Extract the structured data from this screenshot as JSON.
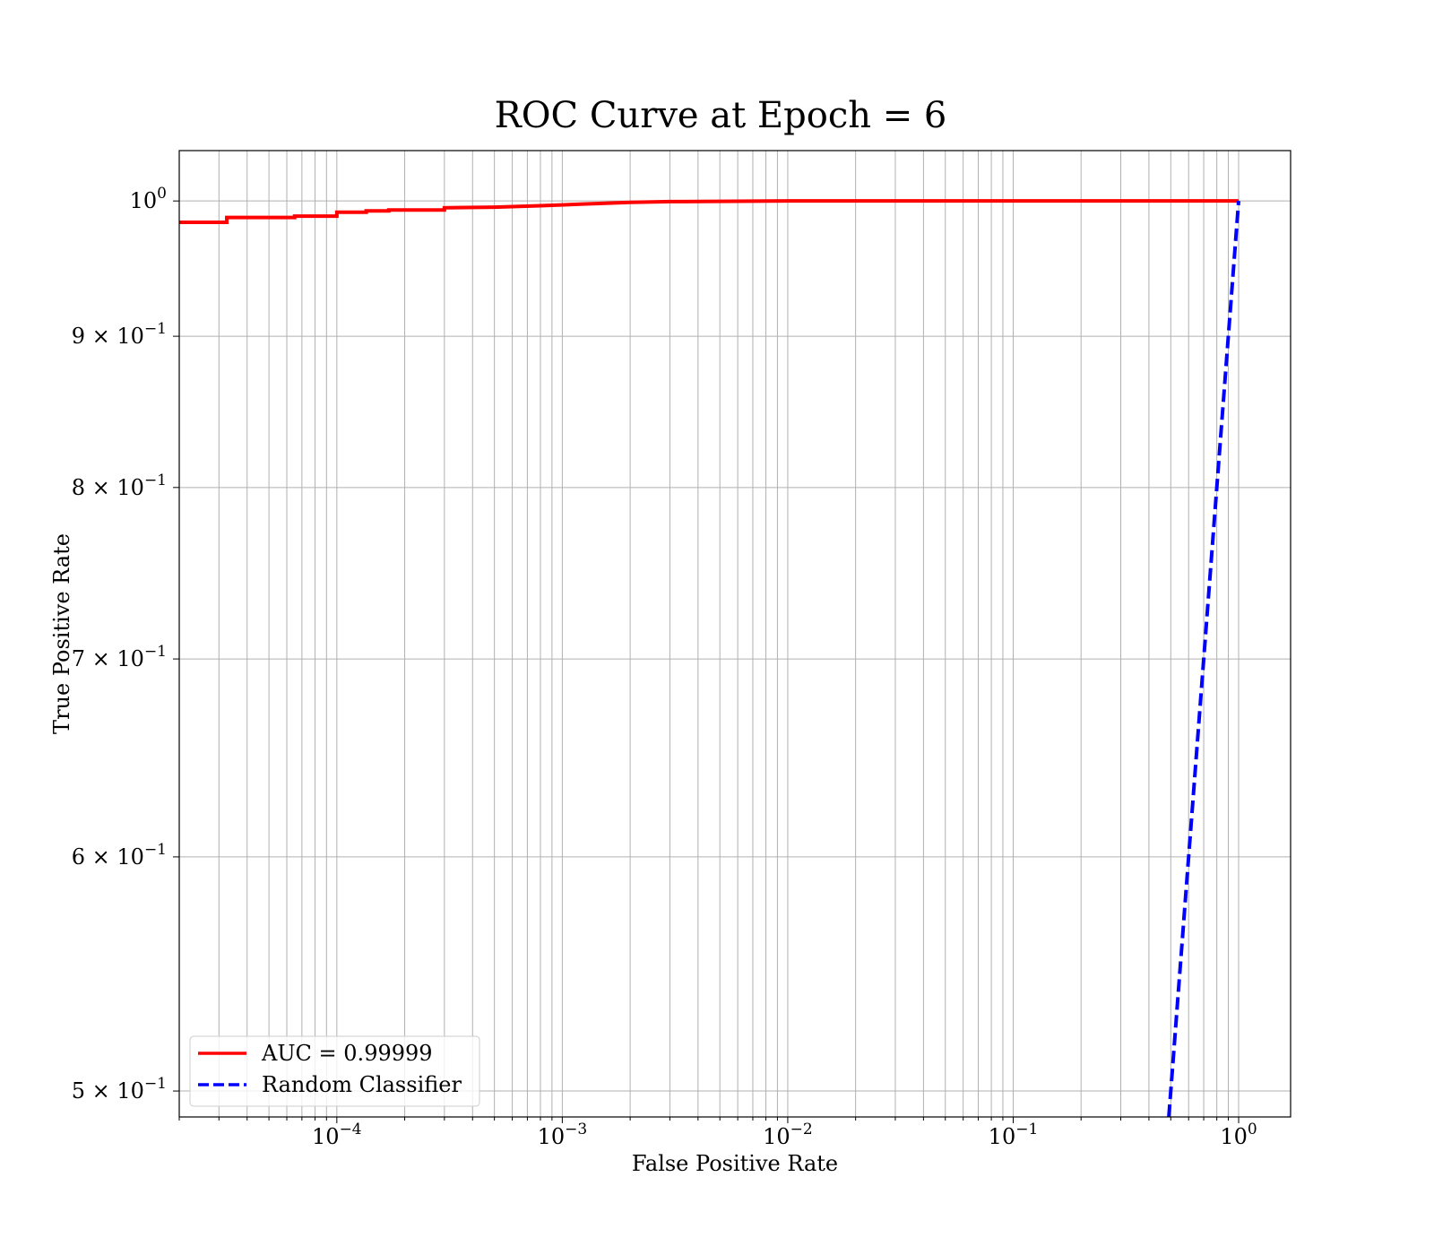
{
  "chart_data": {
    "type": "line",
    "title": "ROC Curve at Epoch = 6",
    "xlabel": "False Positive Rate",
    "ylabel": "True Positive Rate",
    "xscale": "log",
    "yscale": "log",
    "xlim": [
      2e-05,
      1.7
    ],
    "ylim": [
      0.49,
      1.04
    ],
    "grid": true,
    "grid_which": "both",
    "legend_position": "lower-left",
    "x_ticks": [
      {
        "value": 0.0001,
        "base": "10",
        "exp": "−4"
      },
      {
        "value": 0.001,
        "base": "10",
        "exp": "−3"
      },
      {
        "value": 0.01,
        "base": "10",
        "exp": "−2"
      },
      {
        "value": 0.1,
        "base": "10",
        "exp": "−1"
      },
      {
        "value": 1,
        "base": "10",
        "exp": "0"
      }
    ],
    "y_ticks": [
      {
        "value": 0.5,
        "mant": "5 × ",
        "base": "10",
        "exp": "−1"
      },
      {
        "value": 0.6,
        "mant": "6 × ",
        "base": "10",
        "exp": "−1"
      },
      {
        "value": 0.7,
        "mant": "7 × ",
        "base": "10",
        "exp": "−1"
      },
      {
        "value": 0.8,
        "mant": "8 × ",
        "base": "10",
        "exp": "−1"
      },
      {
        "value": 0.9,
        "mant": "9 × ",
        "base": "10",
        "exp": "−1"
      },
      {
        "value": 1.0,
        "mant": "",
        "base": "10",
        "exp": "0"
      }
    ],
    "series": [
      {
        "name": "AUC = 0.99999",
        "color": "#ff0000",
        "style": "solid",
        "x": [
          2e-05,
          3.25e-05,
          3.25e-05,
          6.5e-05,
          6.5e-05,
          0.0001,
          0.0001,
          0.000135,
          0.000135,
          0.00017,
          0.00017,
          0.0003,
          0.0003,
          0.0005,
          0.0008,
          0.0012,
          0.002,
          0.003,
          0.01,
          0.1,
          1.0
        ],
        "y": [
          0.9835,
          0.9835,
          0.9872,
          0.9872,
          0.9882,
          0.9882,
          0.9913,
          0.9913,
          0.9923,
          0.9923,
          0.993,
          0.993,
          0.9947,
          0.9952,
          0.9963,
          0.9975,
          0.9989,
          0.9995,
          1.0,
          1.0,
          1.0
        ]
      },
      {
        "name": "Random Classifier",
        "color": "#0000ff",
        "style": "dashed",
        "x": [
          0.49,
          1.0
        ],
        "y": [
          0.49,
          1.0
        ]
      }
    ]
  }
}
